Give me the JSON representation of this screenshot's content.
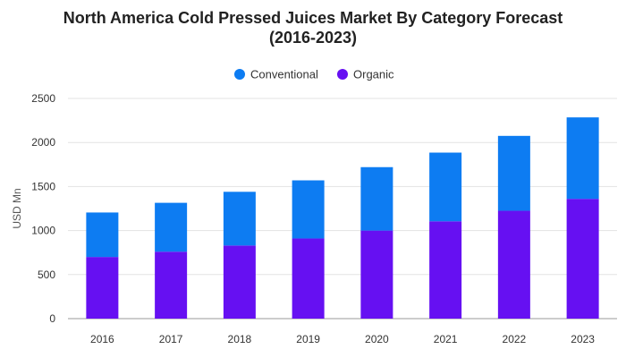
{
  "chart_data": {
    "type": "bar",
    "stacked": true,
    "title": "North America Cold Pressed Juices Market By Category Forecast",
    "subtitle": "(2016-2023)",
    "xlabel": "",
    "ylabel": "USD Mn",
    "ylim": [
      0,
      2500
    ],
    "yticks": [
      0,
      500,
      1000,
      1500,
      2000,
      2500
    ],
    "grid": true,
    "legend_position": "top-center",
    "categories": [
      "2016",
      "2017",
      "2018",
      "2019",
      "2020",
      "2021",
      "2022",
      "2023"
    ],
    "series": [
      {
        "name": "Organic",
        "color": "#6610f2",
        "values": [
          700,
          760,
          830,
          910,
          1000,
          1105,
          1225,
          1360
        ]
      },
      {
        "name": "Conventional",
        "color": "#0d7cf2",
        "values": [
          505,
          555,
          610,
          660,
          720,
          780,
          850,
          925
        ]
      }
    ],
    "legend_order": [
      "Conventional",
      "Organic"
    ]
  }
}
